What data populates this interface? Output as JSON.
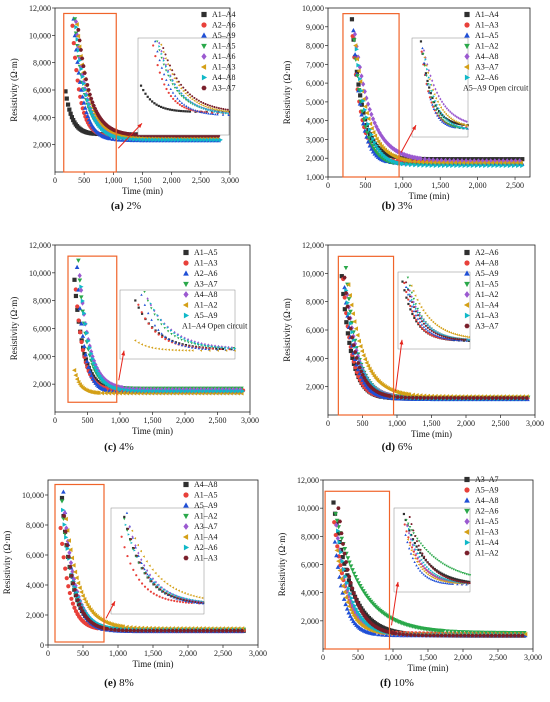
{
  "figure": {
    "chart_data": [
      {
        "type": "scatter",
        "caption_label": "(a)",
        "caption_value": "2%",
        "xlabel": "Time (min)",
        "ylabel": "Resistivity (Ω·m)",
        "xlim": [
          0,
          3000
        ],
        "ylim": [
          0,
          12000
        ],
        "xticks": [
          "0",
          "500",
          "1,000",
          "1,500",
          "2,000",
          "2,500",
          "3,000"
        ],
        "yticks": [
          "2,000",
          "4,000",
          "6,000",
          "8,000",
          "10,000",
          "12,000"
        ],
        "highlight_box": {
          "x": [
            150,
            1050
          ],
          "y": [
            0,
            11600
          ]
        },
        "note": "",
        "series": [
          {
            "name": "A1–A4",
            "color": "#2f2f2f",
            "marker": "square",
            "start_x": 180,
            "start_y": 5900,
            "end_y": 2750,
            "tau": 120,
            "end_x": 2800
          },
          {
            "name": "A2–A6",
            "color": "#e8403a",
            "marker": "circle",
            "start_x": 300,
            "start_y": 10700,
            "end_y": 2550,
            "tau": 130,
            "end_x": 2800
          },
          {
            "name": "A5–A9",
            "color": "#1f4fd6",
            "marker": "triangle-up",
            "start_x": 320,
            "start_y": 11200,
            "end_y": 2300,
            "tau": 150,
            "end_x": 2850
          },
          {
            "name": "A1–A5",
            "color": "#2aa84a",
            "marker": "triangle-down",
            "start_x": 340,
            "start_y": 11200,
            "end_y": 2600,
            "tau": 170,
            "end_x": 2800
          },
          {
            "name": "A1–A6",
            "color": "#9b59d0",
            "marker": "diamond",
            "start_x": 360,
            "start_y": 11000,
            "end_y": 2450,
            "tau": 180,
            "end_x": 2800
          },
          {
            "name": "A1–A3",
            "color": "#d4a017",
            "marker": "triangle-left",
            "start_x": 380,
            "start_y": 10800,
            "end_y": 2500,
            "tau": 200,
            "end_x": 2800
          },
          {
            "name": "A4–A8",
            "color": "#10b8c8",
            "marker": "triangle-right",
            "start_x": 360,
            "start_y": 10600,
            "end_y": 2350,
            "tau": 190,
            "end_x": 2850
          },
          {
            "name": "A3–A7",
            "color": "#7a1f2b",
            "marker": "hexagon",
            "start_x": 400,
            "start_y": 10400,
            "end_y": 2650,
            "tau": 210,
            "end_x": 2800
          }
        ]
      },
      {
        "type": "scatter",
        "caption_label": "(b)",
        "caption_value": "3%",
        "xlabel": "Time (min)",
        "ylabel": "Resistivity (Ω·m)",
        "xlim": [
          0,
          2700
        ],
        "ylim": [
          1000,
          10000
        ],
        "xticks": [
          "0",
          "500",
          "1,000",
          "1,500",
          "2,000",
          "2,500"
        ],
        "yticks": [
          "1,000",
          "2,000",
          "3,000",
          "4,000",
          "5,000",
          "6,000",
          "7,000",
          "8,000",
          "9,000",
          "10,000"
        ],
        "highlight_box": {
          "x": [
            200,
            950
          ],
          "y": [
            1000,
            9700
          ]
        },
        "note": "A5–A9 Open circuit",
        "series": [
          {
            "name": "A1–A4",
            "color": "#2f2f2f",
            "marker": "square",
            "start_x": 320,
            "start_y": 9400,
            "end_y": 1950,
            "tau": 140,
            "end_x": 2600
          },
          {
            "name": "A1–A3",
            "color": "#e8403a",
            "marker": "circle",
            "start_x": 330,
            "start_y": 8500,
            "end_y": 1800,
            "tau": 120,
            "end_x": 2600
          },
          {
            "name": "A1–A5",
            "color": "#1f4fd6",
            "marker": "triangle-up",
            "start_x": 340,
            "start_y": 8800,
            "end_y": 1700,
            "tau": 110,
            "end_x": 2600
          },
          {
            "name": "A1–A2",
            "color": "#2aa84a",
            "marker": "triangle-down",
            "start_x": 350,
            "start_y": 8300,
            "end_y": 1650,
            "tau": 130,
            "end_x": 2600
          },
          {
            "name": "A4–A8",
            "color": "#9b59d0",
            "marker": "diamond",
            "start_x": 360,
            "start_y": 8600,
            "end_y": 1850,
            "tau": 220,
            "end_x": 2600
          },
          {
            "name": "A3–A7",
            "color": "#d4a017",
            "marker": "triangle-left",
            "start_x": 370,
            "start_y": 8000,
            "end_y": 1750,
            "tau": 180,
            "end_x": 2600
          },
          {
            "name": "A2–A6",
            "color": "#10b8c8",
            "marker": "triangle-right",
            "start_x": 380,
            "start_y": 7800,
            "end_y": 1600,
            "tau": 150,
            "end_x": 2600
          }
        ]
      },
      {
        "type": "scatter",
        "caption_label": "(c)",
        "caption_value": "4%",
        "xlabel": "Time (min)",
        "ylabel": "Resistivity (Ω·m)",
        "xlim": [
          0,
          3000
        ],
        "ylim": [
          0,
          12000
        ],
        "xticks": [
          "0",
          "500",
          "1,000",
          "1,500",
          "2,000",
          "2,500",
          "3,000"
        ],
        "yticks": [
          "2,000",
          "4,000",
          "6,000",
          "8,000",
          "10,000",
          "12,000"
        ],
        "highlight_box": {
          "x": [
            200,
            950
          ],
          "y": [
            700,
            11200
          ]
        },
        "note": "A1–A4 Open circuit",
        "series": [
          {
            "name": "A1–A5",
            "color": "#2f2f2f",
            "marker": "square",
            "start_x": 300,
            "start_y": 9500,
            "end_y": 1500,
            "tau": 140,
            "end_x": 2900
          },
          {
            "name": "A1–A3",
            "color": "#e8403a",
            "marker": "circle",
            "start_x": 320,
            "start_y": 8800,
            "end_y": 1550,
            "tau": 120,
            "end_x": 2900
          },
          {
            "name": "A2–A6",
            "color": "#1f4fd6",
            "marker": "triangle-up",
            "start_x": 340,
            "start_y": 10400,
            "end_y": 1400,
            "tau": 110,
            "end_x": 2900
          },
          {
            "name": "A3–A7",
            "color": "#2aa84a",
            "marker": "triangle-down",
            "start_x": 360,
            "start_y": 10900,
            "end_y": 1700,
            "tau": 130,
            "end_x": 2900
          },
          {
            "name": "A4–A8",
            "color": "#9b59d0",
            "marker": "diamond",
            "start_x": 380,
            "start_y": 9800,
            "end_y": 1600,
            "tau": 160,
            "end_x": 2900
          },
          {
            "name": "A1–A2",
            "color": "#d4a017",
            "marker": "triangle-left",
            "start_x": 300,
            "start_y": 3000,
            "end_y": 1350,
            "tau": 90,
            "end_x": 2900
          },
          {
            "name": "A5–A9",
            "color": "#10b8c8",
            "marker": "triangle-right",
            "start_x": 400,
            "start_y": 9000,
            "end_y": 1500,
            "tau": 150,
            "end_x": 2900
          }
        ]
      },
      {
        "type": "scatter",
        "caption_label": "(d)",
        "caption_value": "6%",
        "xlabel": "Time (min)",
        "ylabel": "Resistivity (Ω·m)",
        "xlim": [
          0,
          3000
        ],
        "ylim": [
          0,
          12000
        ],
        "xticks": [
          "0",
          "500",
          "1,000",
          "1,500",
          "2,000",
          "2,500",
          "3,000"
        ],
        "yticks": [
          "2,000",
          "4,000",
          "6,000",
          "8,000",
          "10,000",
          "12,000"
        ],
        "highlight_box": {
          "x": [
            150,
            950
          ],
          "y": [
            0,
            11200
          ]
        },
        "note": "",
        "series": [
          {
            "name": "A2–A6",
            "color": "#2f2f2f",
            "marker": "square",
            "start_x": 200,
            "start_y": 9800,
            "end_y": 1150,
            "tau": 140,
            "end_x": 2900
          },
          {
            "name": "A4–A8",
            "color": "#e8403a",
            "marker": "circle",
            "start_x": 220,
            "start_y": 9600,
            "end_y": 1200,
            "tau": 130,
            "end_x": 2900
          },
          {
            "name": "A5–A9",
            "color": "#1f4fd6",
            "marker": "triangle-up",
            "start_x": 240,
            "start_y": 9000,
            "end_y": 1100,
            "tau": 150,
            "end_x": 2900
          },
          {
            "name": "A1–A5",
            "color": "#2aa84a",
            "marker": "triangle-down",
            "start_x": 260,
            "start_y": 10400,
            "end_y": 1250,
            "tau": 160,
            "end_x": 2900
          },
          {
            "name": "A1–A2",
            "color": "#9b59d0",
            "marker": "diamond",
            "start_x": 280,
            "start_y": 8500,
            "end_y": 1200,
            "tau": 170,
            "end_x": 2900
          },
          {
            "name": "A1–A4",
            "color": "#d4a017",
            "marker": "triangle-left",
            "start_x": 300,
            "start_y": 9200,
            "end_y": 1300,
            "tau": 220,
            "end_x": 2900
          },
          {
            "name": "A1–A3",
            "color": "#10b8c8",
            "marker": "triangle-right",
            "start_x": 260,
            "start_y": 8800,
            "end_y": 1150,
            "tau": 180,
            "end_x": 2900
          },
          {
            "name": "A3–A7",
            "color": "#7a1f2b",
            "marker": "hexagon",
            "start_x": 240,
            "start_y": 9700,
            "end_y": 1200,
            "tau": 160,
            "end_x": 2900
          }
        ]
      },
      {
        "type": "scatter",
        "caption_label": "(e)",
        "caption_value": "8%",
        "xlabel": "Time (min)",
        "ylabel": "Resistivity (Ω·m)",
        "xlim": [
          0,
          3000
        ],
        "ylim": [
          0,
          11000
        ],
        "xticks": [
          "0",
          "500",
          "1,000",
          "1,500",
          "2,000",
          "2,500",
          "3,000"
        ],
        "yticks": [
          "0",
          "2,000",
          "4,000",
          "6,000",
          "8,000",
          "10,000"
        ],
        "highlight_box": {
          "x": [
            100,
            800
          ],
          "y": [
            200,
            10700
          ]
        },
        "note": "",
        "series": [
          {
            "name": "A4–A8",
            "color": "#2f2f2f",
            "marker": "square",
            "start_x": 200,
            "start_y": 9800,
            "end_y": 950,
            "tau": 150,
            "end_x": 2800
          },
          {
            "name": "A1–A5",
            "color": "#e8403a",
            "marker": "circle",
            "start_x": 180,
            "start_y": 7800,
            "end_y": 1000,
            "tau": 130,
            "end_x": 2800
          },
          {
            "name": "A5–A9",
            "color": "#1f4fd6",
            "marker": "triangle-up",
            "start_x": 220,
            "start_y": 10200,
            "end_y": 900,
            "tau": 140,
            "end_x": 2800
          },
          {
            "name": "A1–A2",
            "color": "#2aa84a",
            "marker": "triangle-down",
            "start_x": 200,
            "start_y": 9600,
            "end_y": 1050,
            "tau": 150,
            "end_x": 2800
          },
          {
            "name": "A3–A7",
            "color": "#9b59d0",
            "marker": "diamond",
            "start_x": 240,
            "start_y": 8800,
            "end_y": 950,
            "tau": 160,
            "end_x": 2800
          },
          {
            "name": "A1–A4",
            "color": "#d4a017",
            "marker": "triangle-left",
            "start_x": 260,
            "start_y": 8400,
            "end_y": 1100,
            "tau": 200,
            "end_x": 2800
          },
          {
            "name": "A2–A6",
            "color": "#10b8c8",
            "marker": "triangle-right",
            "start_x": 210,
            "start_y": 9000,
            "end_y": 1000,
            "tau": 170,
            "end_x": 2800
          },
          {
            "name": "A1–A3",
            "color": "#7a1f2b",
            "marker": "hexagon",
            "start_x": 230,
            "start_y": 8600,
            "end_y": 950,
            "tau": 150,
            "end_x": 2800
          }
        ]
      },
      {
        "type": "scatter",
        "caption_label": "(f)",
        "caption_value": "10%",
        "xlabel": "Time (min)",
        "ylabel": "Resistivity (Ω·m)",
        "xlim": [
          0,
          3000
        ],
        "ylim": [
          0,
          12000
        ],
        "xticks": [
          "0",
          "500",
          "1,000",
          "1,500",
          "2,000",
          "2,500",
          "3,000"
        ],
        "yticks": [
          "2,000",
          "4,000",
          "6,000",
          "8,000",
          "10,000",
          "12,000"
        ],
        "highlight_box": {
          "x": [
            30,
            950
          ],
          "y": [
            0,
            11200
          ]
        },
        "note": "",
        "series": [
          {
            "name": "A3–A7",
            "color": "#2f2f2f",
            "marker": "square",
            "start_x": 150,
            "start_y": 10400,
            "end_y": 950,
            "tau": 250,
            "end_x": 2900
          },
          {
            "name": "A5–A9",
            "color": "#e8403a",
            "marker": "circle",
            "start_x": 160,
            "start_y": 9000,
            "end_y": 1100,
            "tau": 180,
            "end_x": 2900
          },
          {
            "name": "A4–A8",
            "color": "#1f4fd6",
            "marker": "triangle-up",
            "start_x": 170,
            "start_y": 7600,
            "end_y": 950,
            "tau": 140,
            "end_x": 2900
          },
          {
            "name": "A2–A6",
            "color": "#2aa84a",
            "marker": "triangle-down",
            "start_x": 180,
            "start_y": 9600,
            "end_y": 1150,
            "tau": 380,
            "end_x": 2900
          },
          {
            "name": "A1–A5",
            "color": "#9b59d0",
            "marker": "diamond",
            "start_x": 190,
            "start_y": 8800,
            "end_y": 1000,
            "tau": 170,
            "end_x": 2900
          },
          {
            "name": "A1–A3",
            "color": "#d4a017",
            "marker": "triangle-left",
            "start_x": 200,
            "start_y": 7000,
            "end_y": 1050,
            "tau": 160,
            "end_x": 2900
          },
          {
            "name": "A1–A4",
            "color": "#10b8c8",
            "marker": "triangle-right",
            "start_x": 210,
            "start_y": 8400,
            "end_y": 1000,
            "tau": 190,
            "end_x": 2900
          },
          {
            "name": "A1–A2",
            "color": "#7a1f2b",
            "marker": "hexagon",
            "start_x": 220,
            "start_y": 10000,
            "end_y": 950,
            "tau": 200,
            "end_x": 2900
          }
        ]
      }
    ],
    "highlight_color": "#f0642a",
    "arrow_color": "#e5231b"
  }
}
